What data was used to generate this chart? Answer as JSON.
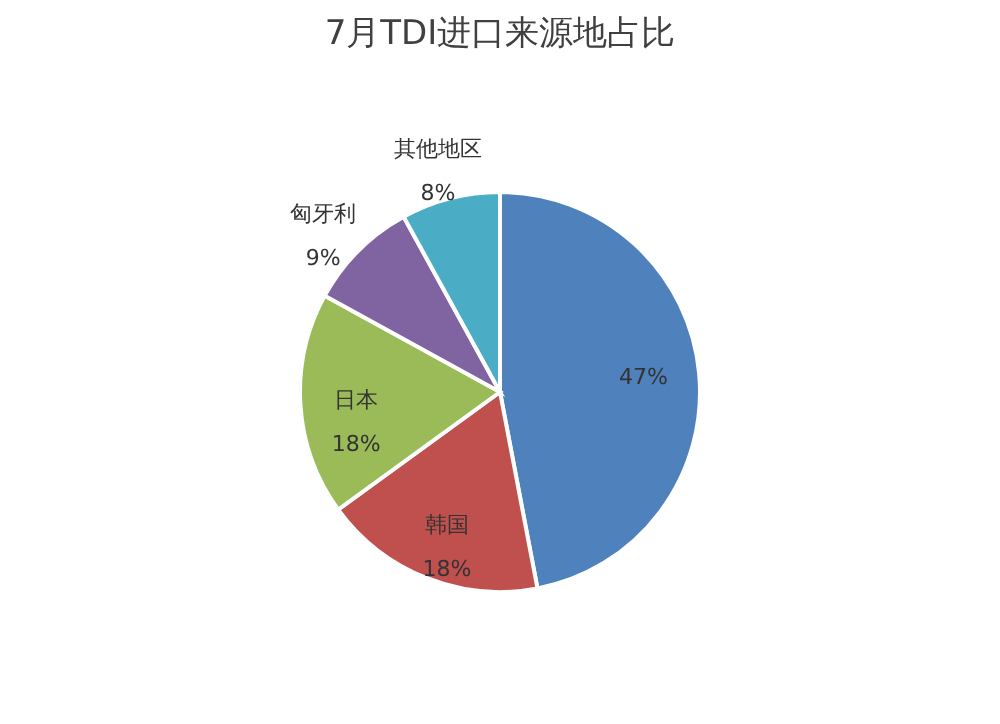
{
  "chart_data": {
    "type": "pie",
    "title": "7月TDI进口来源地占比",
    "categories": [
      null,
      "韩国",
      "日本",
      "匈牙利",
      "其他地区"
    ],
    "values": [
      47,
      18,
      18,
      9,
      8
    ],
    "colors": [
      "#4f81bd",
      "#c0504d",
      "#9bbb59",
      "#8064a2",
      "#4bacc6"
    ],
    "value_labels": [
      "47%",
      "18%",
      "18%",
      "9%",
      "8%"
    ],
    "legend": false
  }
}
